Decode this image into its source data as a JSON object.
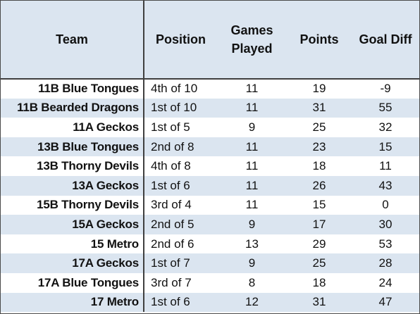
{
  "table": {
    "headers": {
      "team": "Team",
      "position": "Position",
      "games_played_line1": "Games",
      "games_played_line2": "Played",
      "points": "Points",
      "goal_diff": "Goal Diff"
    },
    "rows": [
      {
        "team": "11B Blue Tongues",
        "position": "4th of 10",
        "games_played": "11",
        "points": "19",
        "goal_diff": "-9"
      },
      {
        "team": "11B Bearded Dragons",
        "position": "1st of 10",
        "games_played": "11",
        "points": "31",
        "goal_diff": "55"
      },
      {
        "team": "11A Geckos",
        "position": "1st of 5",
        "games_played": "9",
        "points": "25",
        "goal_diff": "32"
      },
      {
        "team": "13B Blue Tongues",
        "position": "2nd of 8",
        "games_played": "11",
        "points": "23",
        "goal_diff": "15"
      },
      {
        "team": "13B Thorny Devils",
        "position": "4th of 8",
        "games_played": "11",
        "points": "18",
        "goal_diff": "11"
      },
      {
        "team": "13A Geckos",
        "position": "1st of 6",
        "games_played": "11",
        "points": "26",
        "goal_diff": "43"
      },
      {
        "team": "15B Thorny Devils",
        "position": "3rd of 4",
        "games_played": "11",
        "points": "15",
        "goal_diff": "0"
      },
      {
        "team": "15A Geckos",
        "position": "2nd of 5",
        "games_played": "9",
        "points": "17",
        "goal_diff": "30"
      },
      {
        "team": "15 Metro",
        "position": "2nd of 6",
        "games_played": "13",
        "points": "29",
        "goal_diff": "53"
      },
      {
        "team": "17A Geckos",
        "position": "1st of 7",
        "games_played": "9",
        "points": "25",
        "goal_diff": "28"
      },
      {
        "team": "17A Blue Tongues",
        "position": "3rd of 7",
        "games_played": "8",
        "points": "18",
        "goal_diff": "24"
      },
      {
        "team": "17 Metro",
        "position": "1st of 6",
        "games_played": "12",
        "points": "31",
        "goal_diff": "47"
      }
    ]
  },
  "colors": {
    "header_fill": "#dbe5f0",
    "band_fill": "#dbe5f0",
    "row_fill": "#ffffff",
    "border": "#3f3f3f"
  }
}
